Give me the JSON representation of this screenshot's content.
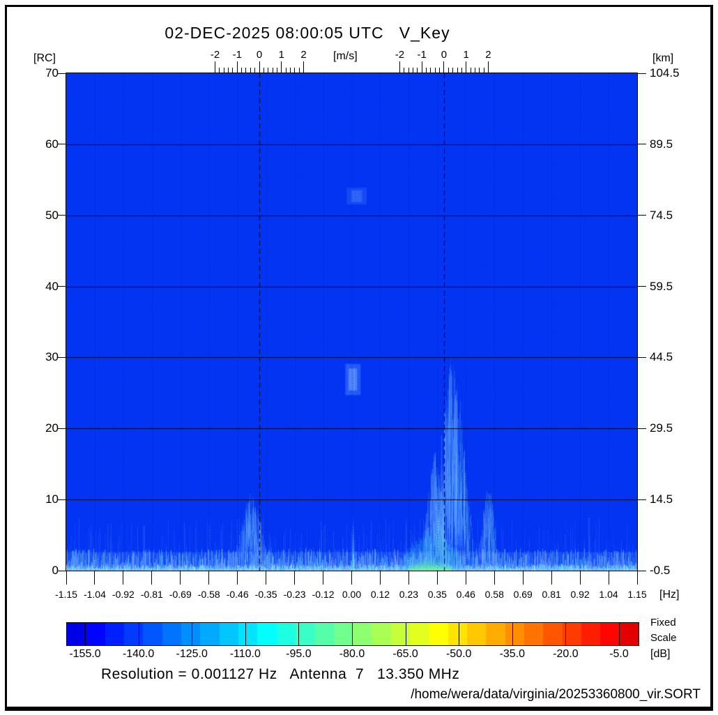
{
  "header": {
    "title": "02-DEC-2025 08:00:05 UTC   V_Key"
  },
  "axes": {
    "left": {
      "unit": "[RC]",
      "ticks": [
        "70",
        "60",
        "50",
        "40",
        "30",
        "20",
        "10",
        "0"
      ]
    },
    "right": {
      "unit": "[km]",
      "ticks": [
        "104.5",
        "89.5",
        "74.5",
        "59.5",
        "44.5",
        "29.5",
        "14.5",
        "-0.5"
      ]
    },
    "bottom": {
      "unit": "[Hz]",
      "ticks": [
        "-1.15",
        "-1.04",
        "-0.92",
        "-0.81",
        "-0.69",
        "-0.58",
        "-0.46",
        "-0.35",
        "-0.23",
        "-0.12",
        "0.00",
        "0.12",
        "0.23",
        "0.35",
        "0.46",
        "0.58",
        "0.69",
        "0.81",
        "0.92",
        "1.04",
        "1.15"
      ]
    },
    "velocity": {
      "unit": "[m/s]",
      "ticks": [
        "-2",
        "-1",
        "0",
        "1",
        "2"
      ]
    }
  },
  "colorbar": {
    "ticks": [
      "-155.0",
      "-140.0",
      "-125.0",
      "-110.0",
      "-95.0",
      "-80.0",
      "-65.0",
      "-50.0",
      "-35.0",
      "-20.0",
      "-5.0"
    ],
    "unit": "[dB]",
    "scale_mode_line1": "Fixed",
    "scale_mode_line2": "Scale",
    "left_color": "#0033f0",
    "right_color": "#f03000",
    "segments": 30
  },
  "footer": {
    "info": "Resolution = 0.001127 Hz   Antenna  7   13.350 MHz",
    "file_path": "/home/wera/data/virginia/20253360800_vir.SORT"
  },
  "colors": {
    "plot_background": "#0234f2",
    "frame": "#000000",
    "text": "#000000"
  },
  "chart_data": {
    "type": "heatmap",
    "title": "02-DEC-2025 08:00:05 UTC V_Key",
    "xlabel": "[Hz]",
    "x_range_hz": [
      -1.15,
      1.15
    ],
    "ylabel_left": "[RC]",
    "y_range_rc": [
      0,
      70
    ],
    "ylabel_right": "[km]",
    "y_range_km": [
      -0.5,
      104.5
    ],
    "color_scale_db": [
      -155.0,
      -5.0
    ],
    "colormap": "jet",
    "scale_mode": "Fixed Scale",
    "grid": {
      "horizontal_solid_rc": [
        10,
        20,
        30,
        40,
        50,
        60
      ],
      "vertical_dotted_at_each_hz_tick": true
    },
    "bragg_lines_hz": [
      -0.372,
      0.372
    ],
    "velocity_ruler": {
      "range_ms": [
        -2,
        2
      ],
      "tick_step_ms": 0.2,
      "centered_on_bragg_lines": true
    },
    "background_level_db": -150,
    "features": [
      {
        "kind": "noise_floor",
        "name": "noise-floor",
        "hz": [
          -1.15,
          1.15
        ],
        "rc": [
          0,
          2.6
        ],
        "sparse_rc_max": 7.5,
        "intensity": 0.6
      },
      {
        "kind": "plume",
        "name": "left-bragg-plume",
        "hz_center": -0.405,
        "hz_sigma": 0.04,
        "rc_max": 11,
        "intensity": 0.45
      },
      {
        "kind": "plume",
        "name": "right-bragg-plume-upper",
        "hz_center": 0.405,
        "hz_sigma": 0.045,
        "rc_max": 31,
        "intensity": 0.75
      },
      {
        "kind": "plume",
        "name": "right-bragg-plume-lower",
        "hz_center": 0.335,
        "hz_sigma": 0.03,
        "rc_max": 17,
        "intensity": 0.55
      },
      {
        "kind": "plume",
        "name": "right-secondary-plume",
        "hz_center": 0.55,
        "hz_sigma": 0.025,
        "rc_max": 12,
        "intensity": 0.4
      },
      {
        "kind": "patch",
        "name": "near-range-clutter-cyan",
        "hz": [
          0.21,
          0.44
        ],
        "rc": [
          0,
          6.3
        ],
        "intensity": 0.55
      },
      {
        "kind": "patch_bright",
        "name": "near-range-clutter-green",
        "hz": [
          0.23,
          0.4
        ],
        "rc": [
          0,
          2.0
        ],
        "intensity": 0.9
      },
      {
        "kind": "carrier",
        "name": "carrier-line",
        "hz_center": 0.003,
        "rc_max": 8.4,
        "intensity": 0.9
      },
      {
        "kind": "blob",
        "name": "ship-echo",
        "hz": [
          -0.026,
          0.036
        ],
        "rc": [
          24.7,
          29.1
        ],
        "intensity": 0.75
      },
      {
        "kind": "blob",
        "name": "faint-echo",
        "hz": [
          -0.02,
          0.06
        ],
        "rc": [
          51.5,
          53.9
        ],
        "intensity": 0.3
      }
    ]
  }
}
